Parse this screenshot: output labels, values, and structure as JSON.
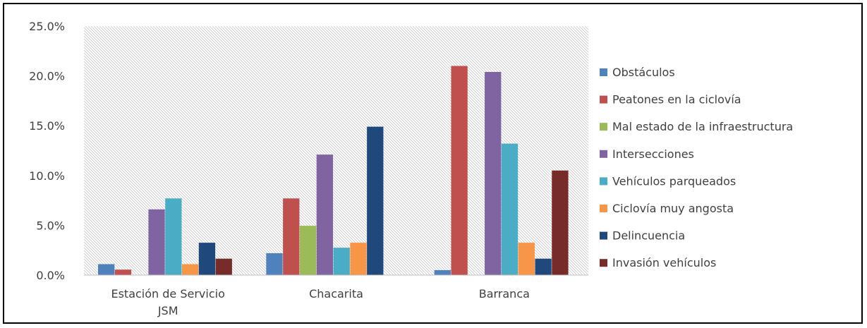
{
  "chart_data": {
    "type": "bar",
    "categories": [
      "Estación de Servicio JSM",
      "Chacarita",
      "Barranca"
    ],
    "series": [
      {
        "name": "Obstáculos",
        "color": "#4F81BD",
        "values": [
          1.1,
          2.2,
          0.5
        ]
      },
      {
        "name": "Peatones en la ciclovía",
        "color": "#C0504D",
        "values": [
          0.55,
          7.7,
          21.0
        ]
      },
      {
        "name": "Mal estado de la infraestructura",
        "color": "#9BBB59",
        "values": [
          0.0,
          4.95,
          0.0
        ]
      },
      {
        "name": "Intersecciones",
        "color": "#8064A2",
        "values": [
          6.6,
          12.1,
          20.4
        ]
      },
      {
        "name": "Vehículos parqueados",
        "color": "#4BACC6",
        "values": [
          7.7,
          2.75,
          13.2
        ]
      },
      {
        "name": "Ciclovía muy angosta",
        "color": "#F79646",
        "values": [
          1.1,
          3.25,
          3.25
        ]
      },
      {
        "name": "Delincuencia",
        "color": "#1F497D",
        "values": [
          3.25,
          14.9,
          1.65
        ]
      },
      {
        "name": "Invasión vehículos",
        "color": "#772C2A",
        "values": [
          1.65,
          0.0,
          10.5
        ]
      }
    ],
    "ylim": [
      0,
      25
    ],
    "yticks": [
      "0.0%",
      "5.0%",
      "10.0%",
      "15.0%",
      "20.0%",
      "25.0%"
    ],
    "grid": false,
    "plot_pattern": "diagonal hatch",
    "legend_position": "right"
  }
}
